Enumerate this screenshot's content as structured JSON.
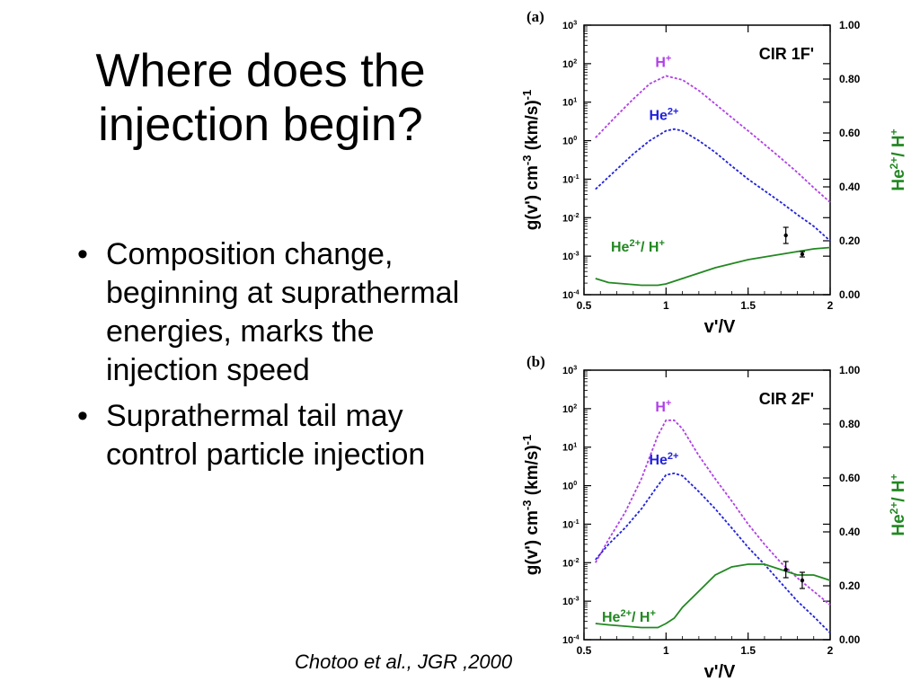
{
  "slide": {
    "title": "Where does the injection begin?",
    "bullets": [
      "Composition change, beginning at suprathermal energies, marks the injection speed",
      "Suprathermal tail may control particle injection"
    ],
    "bullet_symbol": "•",
    "citation": "Chotoo et al., JGR ,2000"
  },
  "colors": {
    "h_plus": "#b040e8",
    "he2_plus": "#2222dd",
    "ratio": "#228822",
    "axis": "#000000"
  },
  "chart_data": [
    {
      "type": "line",
      "panel_label": "(a)",
      "title": "CIR 1F'",
      "xlabel": "v'/V",
      "ylabel": "g(v') cm^-3 (km/s)^-1",
      "y2label": "He2+/ H+",
      "xlim": [
        0.5,
        2
      ],
      "ylim": [
        0.0001,
        1000
      ],
      "yscale": "log",
      "y2lim": [
        0,
        1
      ],
      "x_ticks": [
        "0.5",
        "1",
        "1.5",
        "2"
      ],
      "y_ticks": [
        "10-4",
        "10-3",
        "10-2",
        "10-1",
        "100",
        "101",
        "102",
        "103"
      ],
      "y2_ticks": [
        "0.00",
        "0.20",
        "0.40",
        "0.60",
        "0.80",
        "1.00"
      ],
      "series": [
        {
          "name": "H+",
          "axis": "left",
          "style": "dashed",
          "x": [
            0.57,
            0.7,
            0.8,
            0.9,
            1.0,
            1.1,
            1.2,
            1.3,
            1.4,
            1.5,
            1.6,
            1.7,
            1.8,
            1.9,
            2.0
          ],
          "y": [
            1.2,
            4.5,
            12,
            30,
            48,
            38,
            20,
            9,
            4,
            1.8,
            0.8,
            0.35,
            0.15,
            0.06,
            0.025
          ]
        },
        {
          "name": "He2+",
          "axis": "left",
          "style": "dashed",
          "x": [
            0.57,
            0.7,
            0.8,
            0.9,
            1.0,
            1.05,
            1.1,
            1.2,
            1.3,
            1.4,
            1.5,
            1.6,
            1.7,
            1.8,
            1.9,
            2.0
          ],
          "y": [
            0.055,
            0.18,
            0.45,
            1.0,
            1.8,
            2.0,
            1.8,
            1.0,
            0.5,
            0.22,
            0.1,
            0.05,
            0.025,
            0.012,
            0.006,
            0.0025
          ]
        },
        {
          "name": "He2+/ H+",
          "axis": "right",
          "style": "solid",
          "x": [
            0.57,
            0.65,
            0.75,
            0.85,
            0.95,
            1.0,
            1.05,
            1.1,
            1.2,
            1.3,
            1.4,
            1.5,
            1.6,
            1.7,
            1.8,
            1.9,
            2.0
          ],
          "y": [
            0.06,
            0.045,
            0.04,
            0.035,
            0.035,
            0.04,
            0.05,
            0.06,
            0.08,
            0.1,
            0.115,
            0.13,
            0.14,
            0.15,
            0.16,
            0.17,
            0.175
          ]
        }
      ],
      "error_points": [
        {
          "axis": "right",
          "x": 1.73,
          "y": 0.22,
          "err": 0.03
        },
        {
          "axis": "right",
          "x": 1.83,
          "y": 0.15,
          "err": 0.01
        }
      ]
    },
    {
      "type": "line",
      "panel_label": "(b)",
      "title": "CIR 2F'",
      "xlabel": "v'/V",
      "ylabel": "g(v') cm^-3 (km/s)^-1",
      "y2label": "He2+/ H+",
      "xlim": [
        0.5,
        2
      ],
      "ylim": [
        0.0001,
        1000
      ],
      "yscale": "log",
      "y2lim": [
        0,
        1
      ],
      "x_ticks": [
        "0.5",
        "1",
        "1.5",
        "2"
      ],
      "y_ticks": [
        "10-4",
        "10-3",
        "10-2",
        "10-1",
        "100",
        "101",
        "102",
        "103"
      ],
      "y2_ticks": [
        "0.00",
        "0.20",
        "0.40",
        "0.60",
        "0.80",
        "1.00"
      ],
      "series": [
        {
          "name": "H+",
          "axis": "left",
          "style": "dashed",
          "x": [
            0.57,
            0.65,
            0.75,
            0.85,
            0.95,
            1.0,
            1.05,
            1.1,
            1.2,
            1.3,
            1.4,
            1.5,
            1.6,
            1.7,
            1.8,
            1.9,
            2.0
          ],
          "y": [
            0.01,
            0.04,
            0.2,
            1.5,
            20,
            50,
            50,
            30,
            6,
            1.5,
            0.4,
            0.1,
            0.03,
            0.01,
            0.004,
            0.0018,
            0.0008
          ]
        },
        {
          "name": "He2+",
          "axis": "left",
          "style": "dashed",
          "x": [
            0.57,
            0.65,
            0.75,
            0.85,
            0.95,
            1.0,
            1.05,
            1.1,
            1.2,
            1.3,
            1.4,
            1.5,
            1.6,
            1.7,
            1.8,
            1.9,
            2.0
          ],
          "y": [
            0.012,
            0.03,
            0.08,
            0.25,
            1.0,
            1.9,
            2.1,
            1.8,
            0.7,
            0.25,
            0.08,
            0.025,
            0.009,
            0.003,
            0.001,
            0.0004,
            0.00015
          ]
        },
        {
          "name": "He2+/ H+",
          "axis": "right",
          "style": "solid",
          "x": [
            0.57,
            0.65,
            0.75,
            0.85,
            0.95,
            1.0,
            1.05,
            1.1,
            1.2,
            1.3,
            1.4,
            1.5,
            1.6,
            1.7,
            1.8,
            1.9,
            2.0
          ],
          "y": [
            0.06,
            0.055,
            0.05,
            0.045,
            0.045,
            0.06,
            0.08,
            0.12,
            0.18,
            0.24,
            0.27,
            0.28,
            0.28,
            0.26,
            0.24,
            0.24,
            0.22
          ]
        }
      ],
      "error_points": [
        {
          "axis": "right",
          "x": 1.73,
          "y": 0.26,
          "err": 0.03
        },
        {
          "axis": "right",
          "x": 1.83,
          "y": 0.22,
          "err": 0.03
        }
      ]
    }
  ]
}
